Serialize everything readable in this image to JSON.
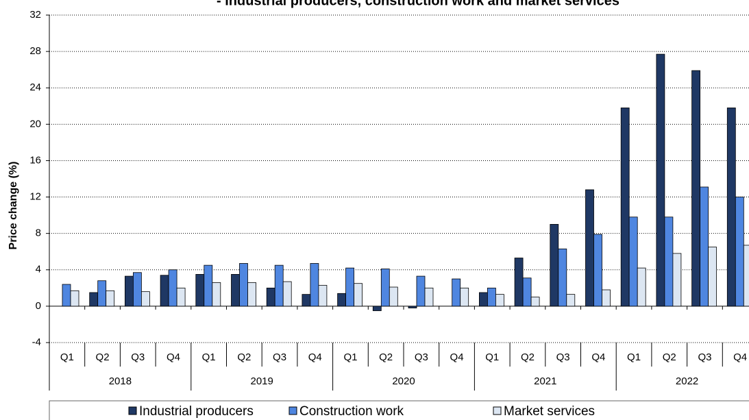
{
  "chart_data": {
    "type": "bar",
    "title": "- Industrial producers, construction work and market services",
    "y_label": "Price change (%)",
    "categories": [
      "Q1",
      "Q2",
      "Q3",
      "Q4",
      "Q1",
      "Q2",
      "Q3",
      "Q4",
      "Q1",
      "Q2",
      "Q3",
      "Q4",
      "Q1",
      "Q2",
      "Q3",
      "Q4",
      "Q1",
      "Q2",
      "Q3",
      "Q4"
    ],
    "groups": [
      "2018",
      "2019",
      "2020",
      "2021",
      "2022"
    ],
    "series": [
      {
        "name": "Industrial producers",
        "color": "#1f3864",
        "values": [
          0,
          1.5,
          3.3,
          3.4,
          3.5,
          3.5,
          2.0,
          1.3,
          1.4,
          -0.5,
          -0.2,
          0,
          1.5,
          5.3,
          9.0,
          12.8,
          21.8,
          27.7,
          25.9,
          21.8
        ]
      },
      {
        "name": "Construction work",
        "color": "#4f86e0",
        "values": [
          2.4,
          2.8,
          3.7,
          4.0,
          4.5,
          4.7,
          4.5,
          4.7,
          4.2,
          4.1,
          3.3,
          3.0,
          2.0,
          3.1,
          6.3,
          7.9,
          9.8,
          9.8,
          13.1,
          12.0
        ]
      },
      {
        "name": "Market services",
        "color": "#dce6f2",
        "values": [
          1.7,
          1.7,
          1.6,
          2.0,
          2.6,
          2.6,
          2.7,
          2.3,
          2.5,
          2.1,
          2.0,
          2.0,
          1.3,
          1.0,
          1.3,
          1.8,
          4.2,
          5.8,
          6.5,
          6.7
        ]
      }
    ],
    "ylim": [
      -4,
      32
    ],
    "yticks": [
      -4,
      0,
      4,
      8,
      12,
      16,
      20,
      24,
      28,
      32
    ],
    "grid": true
  }
}
